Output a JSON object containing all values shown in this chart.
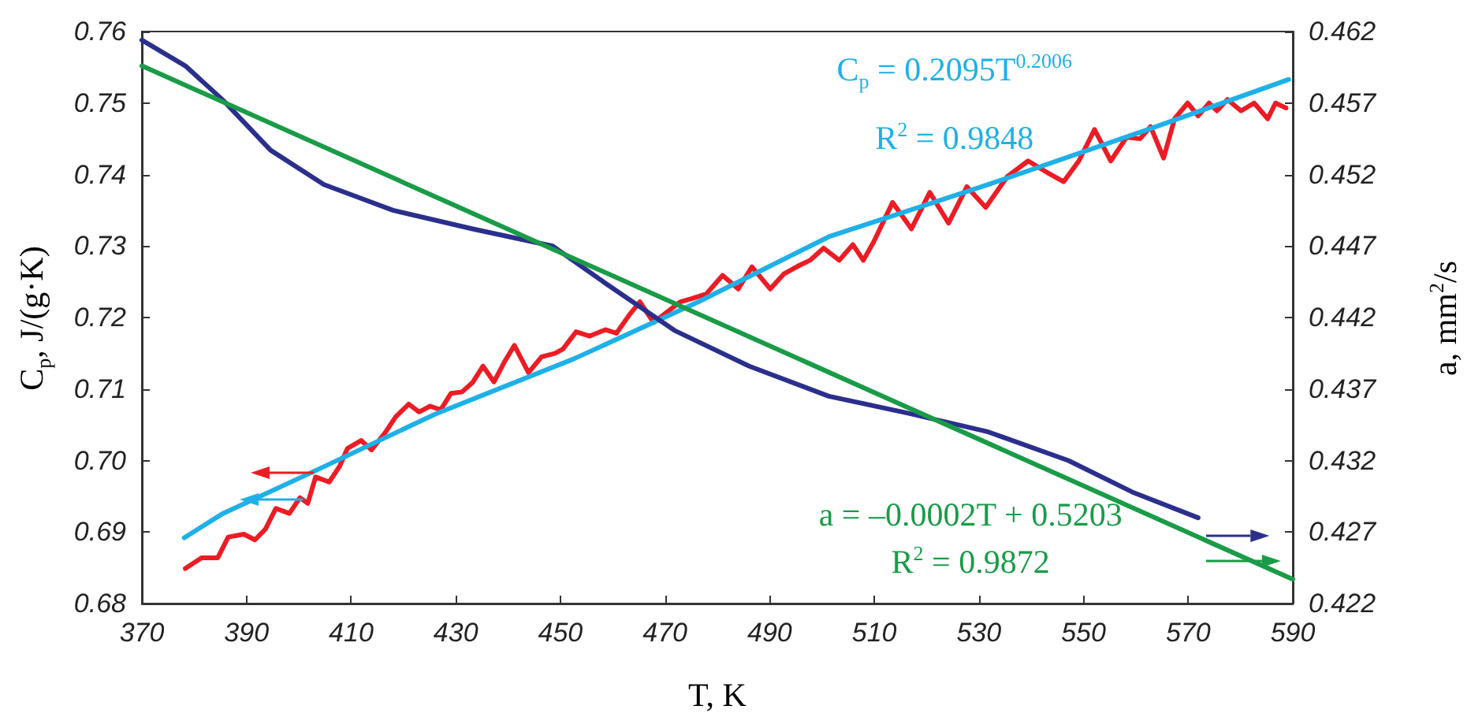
{
  "chart_data": {
    "type": "line",
    "xlabel": "T, K",
    "ylabel": "C$_{p}$, J/(g·K)",
    "y2label": "a, mm$^{2}$/s",
    "xlim": [
      370,
      590
    ],
    "xticks": [
      370,
      390,
      410,
      430,
      450,
      470,
      490,
      510,
      530,
      550,
      570,
      590
    ],
    "ylim": [
      0.68,
      0.76
    ],
    "yticks": [
      0.68,
      0.69,
      {
        "value": 0.7,
        "label": "0.70"
      },
      0.71,
      0.72,
      0.73,
      0.74,
      0.75,
      0.76
    ],
    "y2lim": [
      0.422,
      0.462
    ],
    "y2ticks": [
      0.422,
      0.427,
      0.432,
      0.437,
      0.442,
      0.447,
      0.452,
      0.457,
      0.462
    ],
    "grid": false,
    "marker": "none",
    "line_style": "solid",
    "annotations": [
      "C$_{p}$ = 0.2095T$^{0.2006}$",
      "R$^{2}$ = 0.9848",
      "a = –0.0002T + 0.5203",
      "R$^{2}$ = 0.9872"
    ],
    "series": [
      {
        "color": "#ed1c24",
        "x": [
          378.3,
          381.4,
          384.5,
          386.5,
          389.5,
          391.6,
          393.6,
          395.6,
          398.2,
          400.2,
          401.7,
          403.2,
          405.8,
          407.8,
          409.3,
          411.9,
          413.9,
          416.5,
          418.5,
          421.0,
          423.0,
          425.1,
          427.1,
          429.1,
          431.2,
          433.2,
          435.2,
          437.3,
          439.3,
          441.2,
          443.9,
          446.4,
          449.0,
          450.5,
          453.0,
          455.6,
          458.6,
          460.7,
          463.2,
          465.2,
          467.8,
          472.9,
          474.9,
          477.9,
          481.0,
          484.0,
          486.6,
          490.1,
          492.7,
          495.7,
          497.7,
          500.3,
          503.3,
          505.9,
          507.9,
          509.9,
          513.5,
          517.1,
          520.6,
          524.2,
          527.7,
          531.3,
          535.4,
          539.4,
          543.0,
          546.2,
          549.1,
          552.1,
          555.2,
          558.2,
          560.8,
          562.8,
          565.3,
          567.4,
          569.9,
          571.9,
          574.0,
          575.5,
          577.5,
          580.1,
          582.6,
          585.2,
          586.7,
          588.7
        ],
        "values": [
          0.6849,
          0.6864,
          0.6864,
          0.6893,
          0.6897,
          0.6889,
          0.6904,
          0.6933,
          0.6926,
          0.6948,
          0.694,
          0.6977,
          0.697,
          0.6992,
          0.7017,
          0.7028,
          0.7015,
          0.7039,
          0.7061,
          0.7079,
          0.7068,
          0.7076,
          0.7071,
          0.7094,
          0.7096,
          0.7109,
          0.7132,
          0.711,
          0.7138,
          0.7161,
          0.7123,
          0.7145,
          0.715,
          0.7156,
          0.718,
          0.7174,
          0.7183,
          0.7178,
          0.7204,
          0.7222,
          0.7193,
          0.7222,
          0.7226,
          0.7233,
          0.7259,
          0.724,
          0.7271,
          0.724,
          0.7261,
          0.7273,
          0.728,
          0.7297,
          0.728,
          0.7302,
          0.728,
          0.7306,
          0.7361,
          0.7324,
          0.7375,
          0.7332,
          0.7383,
          0.7354,
          0.7397,
          0.7419,
          0.7403,
          0.739,
          0.7419,
          0.7463,
          0.7419,
          0.7452,
          0.745,
          0.7467,
          0.7423,
          0.7478,
          0.75,
          0.7482,
          0.75,
          0.7489,
          0.7505,
          0.7489,
          0.75,
          0.7478,
          0.75,
          0.7493
        ]
      },
      {
        "color": "#1fb0e8",
        "x": [
          378.1,
          385.5,
          403.8,
          426.1,
          452.5,
          476.4,
          501.3,
          531.8,
          562.3,
          589.2
        ],
        "values": [
          0.6892,
          0.6926,
          0.6988,
          0.7065,
          0.7142,
          0.7222,
          0.7313,
          0.7386,
          0.7463,
          0.7533
        ]
      },
      {
        "color": "#2b2f8c",
        "axis": "y2",
        "x": [
          370,
          378.3,
          385.5,
          394.6,
          404.8,
          418.0,
          433.2,
          448.5,
          458.6,
          471.8,
          486.1,
          501.3,
          516.6,
          531.8,
          547.1,
          559.3,
          571.9
        ],
        "values": [
          0.4614,
          0.4596,
          0.4572,
          0.4537,
          0.4513,
          0.4495,
          0.4482,
          0.447,
          0.4444,
          0.4411,
          0.4386,
          0.4365,
          0.4353,
          0.434,
          0.432,
          0.4298,
          0.428
        ]
      },
      {
        "color": "#1a9b48",
        "axis": "y2",
        "x": [
          370,
          590
        ],
        "values": [
          0.4596,
          0.4237
        ]
      }
    ]
  }
}
